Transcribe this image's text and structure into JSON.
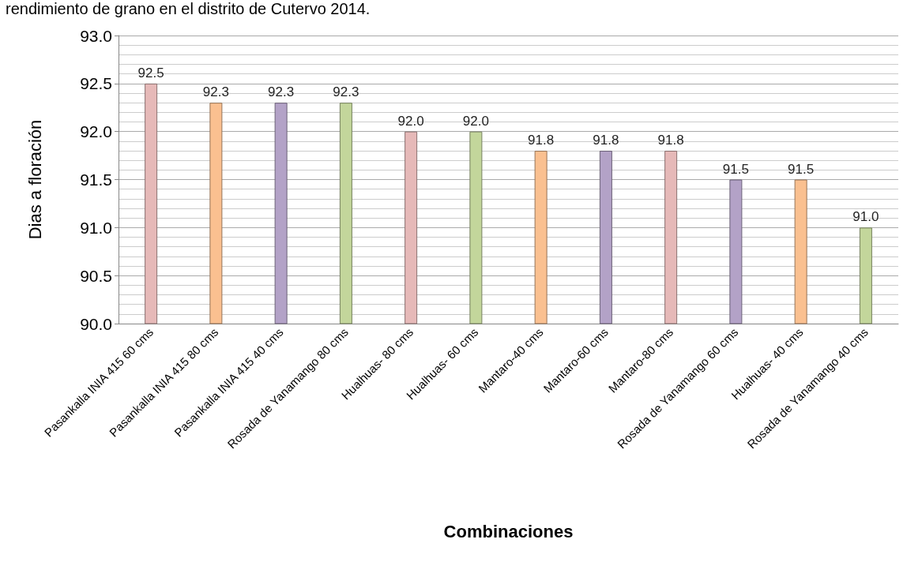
{
  "chart_data": {
    "type": "bar",
    "title": "rendimiento de grano en el distrito de Cutervo 2014.",
    "xlabel": "Combinaciones",
    "ylabel": "Dias a floración",
    "categories": [
      "Pasankalla INIA 415 60 cms",
      "Pasankalla INIA 415 80 cms",
      "Pasankalla INIA 415 40 cms",
      "Rosada de Yanamango 80 cms",
      "Hualhuas- 80 cms",
      "Hualhuas- 60 cms",
      "Mantaro-40 cms",
      "Mantaro-60 cms",
      "Mantaro-80 cms",
      "Rosada de Yanamango 60 cms",
      "Hualhuas- 40 cms",
      "Rosada de Yanamango 40 cms"
    ],
    "values": [
      92.5,
      92.3,
      92.3,
      92.3,
      92.0,
      92.0,
      91.8,
      91.8,
      91.8,
      91.5,
      91.5,
      91.0
    ],
    "value_labels": [
      "92.5",
      "92.3",
      "92.3",
      "92.3",
      "92.0",
      "92.0",
      "91.8",
      "91.8",
      "91.8",
      "91.5",
      "91.5",
      "91.0"
    ],
    "colors": [
      "#e6b9b8",
      "#fac090",
      "#b3a2c7",
      "#c3d69b",
      "#e6b9b8",
      "#c3d69b",
      "#fac090",
      "#b3a2c7",
      "#e6b9b8",
      "#b3a2c7",
      "#fac090",
      "#c3d69b"
    ],
    "ylim": [
      90,
      93
    ],
    "yticks": [
      {
        "value": 90,
        "label": "90.0"
      },
      {
        "value": 90.5,
        "label": "90.5"
      },
      {
        "value": 91,
        "label": "91.0"
      },
      {
        "value": 91.5,
        "label": "91.5"
      },
      {
        "value": 92,
        "label": "92.0"
      },
      {
        "value": 92.5,
        "label": "92.5"
      },
      {
        "value": 93,
        "label": "93.0"
      }
    ],
    "grid": true
  }
}
